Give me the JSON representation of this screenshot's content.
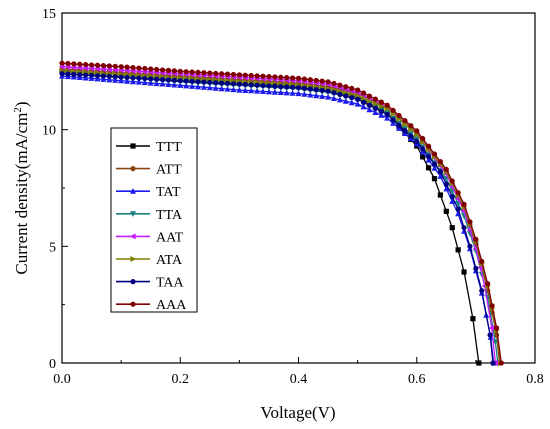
{
  "chart_data": {
    "type": "line",
    "xlabel": "Voltage(V)",
    "ylabel_prefix": "Current density(mA/cm",
    "ylabel_sup": "2",
    "ylabel_suffix": ")",
    "xlim": [
      0.0,
      0.8
    ],
    "ylim": [
      0,
      15
    ],
    "xticks": [
      0.0,
      0.2,
      0.4,
      0.6,
      0.8
    ],
    "xtick_labels": [
      "0.0",
      "0.2",
      "0.4",
      "0.6",
      "0.8"
    ],
    "yticks": [
      0,
      5,
      10,
      15
    ],
    "ytick_labels": [
      "0",
      "5",
      "10",
      "15"
    ],
    "grid": false,
    "legend_position": "left-center",
    "series": [
      {
        "name": "TTT",
        "color": "#000000",
        "marker": "square",
        "points": [
          [
            0.0,
            12.5
          ],
          [
            0.1,
            12.35
          ],
          [
            0.2,
            12.2
          ],
          [
            0.3,
            12.05
          ],
          [
            0.4,
            11.9
          ],
          [
            0.45,
            11.75
          ],
          [
            0.5,
            11.4
          ],
          [
            0.55,
            10.7
          ],
          [
            0.6,
            9.3
          ],
          [
            0.63,
            7.9
          ],
          [
            0.66,
            5.8
          ],
          [
            0.68,
            3.9
          ],
          [
            0.695,
            1.9
          ],
          [
            0.705,
            0.0
          ]
        ]
      },
      {
        "name": "ATT",
        "color": "#8B4513",
        "marker": "circle",
        "points": [
          [
            0.0,
            12.6
          ],
          [
            0.1,
            12.45
          ],
          [
            0.2,
            12.3
          ],
          [
            0.3,
            12.15
          ],
          [
            0.4,
            12.0
          ],
          [
            0.45,
            11.85
          ],
          [
            0.5,
            11.55
          ],
          [
            0.55,
            10.95
          ],
          [
            0.6,
            9.85
          ],
          [
            0.65,
            8.2
          ],
          [
            0.68,
            6.6
          ],
          [
            0.7,
            5.1
          ],
          [
            0.72,
            3.1
          ],
          [
            0.735,
            1.2
          ],
          [
            0.74,
            0.0
          ]
        ]
      },
      {
        "name": "TAT",
        "color": "#1C1CF0",
        "marker": "triangle-up",
        "points": [
          [
            0.0,
            12.3
          ],
          [
            0.1,
            12.1
          ],
          [
            0.2,
            11.9
          ],
          [
            0.3,
            11.7
          ],
          [
            0.4,
            11.55
          ],
          [
            0.45,
            11.4
          ],
          [
            0.5,
            11.1
          ],
          [
            0.55,
            10.5
          ],
          [
            0.6,
            9.4
          ],
          [
            0.64,
            8.0
          ],
          [
            0.67,
            6.4
          ],
          [
            0.69,
            4.9
          ],
          [
            0.71,
            3.0
          ],
          [
            0.725,
            1.1
          ],
          [
            0.73,
            0.0
          ]
        ]
      },
      {
        "name": "TTA",
        "color": "#17807E",
        "marker": "triangle-down",
        "points": [
          [
            0.0,
            12.4
          ],
          [
            0.1,
            12.25
          ],
          [
            0.2,
            12.05
          ],
          [
            0.3,
            11.9
          ],
          [
            0.4,
            11.75
          ],
          [
            0.45,
            11.6
          ],
          [
            0.5,
            11.3
          ],
          [
            0.55,
            10.7
          ],
          [
            0.6,
            9.6
          ],
          [
            0.65,
            7.9
          ],
          [
            0.68,
            6.3
          ],
          [
            0.7,
            4.8
          ],
          [
            0.72,
            2.8
          ],
          [
            0.733,
            0.9
          ],
          [
            0.737,
            0.0
          ]
        ]
      },
      {
        "name": "AAT",
        "color": "#C61AFF",
        "marker": "triangle-left",
        "points": [
          [
            0.0,
            12.7
          ],
          [
            0.1,
            12.55
          ],
          [
            0.2,
            12.4
          ],
          [
            0.3,
            12.25
          ],
          [
            0.4,
            12.1
          ],
          [
            0.45,
            11.95
          ],
          [
            0.5,
            11.6
          ],
          [
            0.55,
            10.95
          ],
          [
            0.6,
            9.8
          ],
          [
            0.65,
            8.1
          ],
          [
            0.68,
            6.5
          ],
          [
            0.7,
            4.9
          ],
          [
            0.715,
            3.3
          ],
          [
            0.727,
            1.5
          ],
          [
            0.733,
            0.0
          ]
        ]
      },
      {
        "name": "ATA",
        "color": "#808000",
        "marker": "triangle-right",
        "points": [
          [
            0.0,
            12.5
          ],
          [
            0.1,
            12.35
          ],
          [
            0.2,
            12.2
          ],
          [
            0.3,
            12.05
          ],
          [
            0.4,
            11.9
          ],
          [
            0.45,
            11.75
          ],
          [
            0.5,
            11.45
          ],
          [
            0.55,
            10.9
          ],
          [
            0.6,
            9.8
          ],
          [
            0.65,
            8.2
          ],
          [
            0.68,
            6.7
          ],
          [
            0.7,
            5.2
          ],
          [
            0.72,
            3.3
          ],
          [
            0.735,
            1.4
          ],
          [
            0.742,
            0.0
          ]
        ]
      },
      {
        "name": "TAA",
        "color": "#000080",
        "marker": "circle",
        "points": [
          [
            0.0,
            12.4
          ],
          [
            0.1,
            12.25
          ],
          [
            0.2,
            12.1
          ],
          [
            0.3,
            11.95
          ],
          [
            0.4,
            11.8
          ],
          [
            0.45,
            11.65
          ],
          [
            0.5,
            11.3
          ],
          [
            0.55,
            10.65
          ],
          [
            0.6,
            9.5
          ],
          [
            0.64,
            8.2
          ],
          [
            0.67,
            6.6
          ],
          [
            0.69,
            5.0
          ],
          [
            0.71,
            3.1
          ],
          [
            0.724,
            1.2
          ],
          [
            0.729,
            0.0
          ]
        ]
      },
      {
        "name": "AAA",
        "color": "#800000",
        "marker": "circle",
        "points": [
          [
            0.0,
            12.85
          ],
          [
            0.1,
            12.7
          ],
          [
            0.2,
            12.5
          ],
          [
            0.3,
            12.35
          ],
          [
            0.4,
            12.2
          ],
          [
            0.45,
            12.05
          ],
          [
            0.5,
            11.7
          ],
          [
            0.55,
            11.05
          ],
          [
            0.6,
            9.95
          ],
          [
            0.65,
            8.3
          ],
          [
            0.68,
            6.8
          ],
          [
            0.7,
            5.3
          ],
          [
            0.72,
            3.4
          ],
          [
            0.735,
            1.5
          ],
          [
            0.743,
            0.0
          ]
        ]
      }
    ]
  }
}
